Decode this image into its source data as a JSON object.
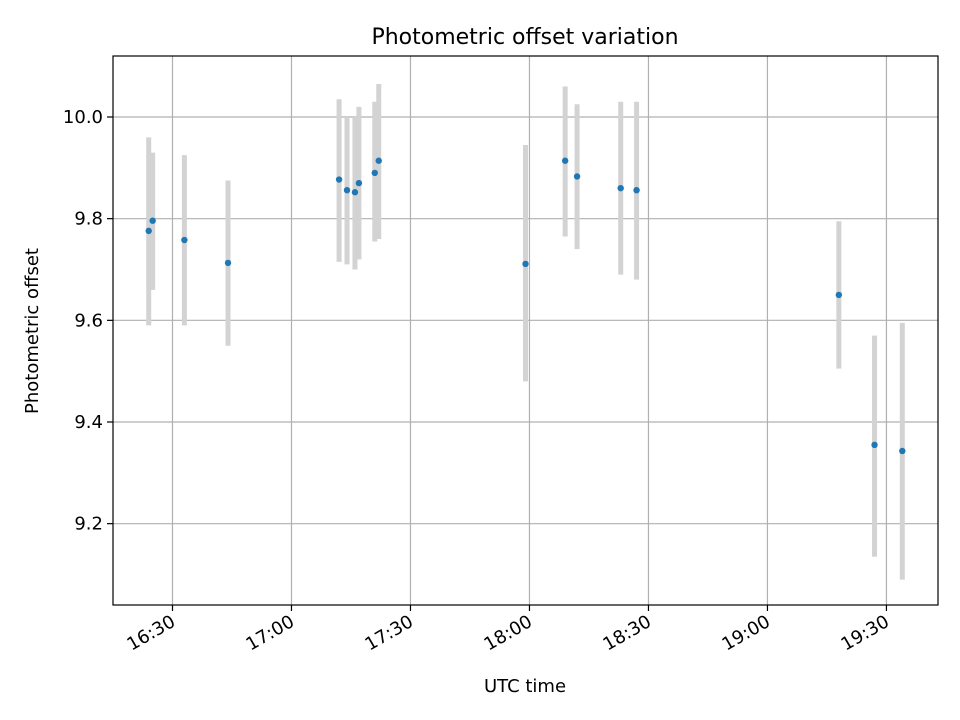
{
  "chart_data": {
    "type": "scatter",
    "title": "Photometric offset variation",
    "xlabel": "UTC time",
    "ylabel": "Photometric offset",
    "xlim": [
      "16:15",
      "19:43"
    ],
    "ylim": [
      9.04,
      10.12
    ],
    "xticks": [
      "16:30",
      "17:00",
      "17:30",
      "18:00",
      "18:30",
      "19:00",
      "19:30"
    ],
    "yticks": [
      9.2,
      9.4,
      9.6,
      9.8,
      10.0
    ],
    "ytick_labels": [
      "9.2",
      "9.4",
      "9.6",
      "9.8",
      "10.0"
    ],
    "grid": true,
    "colors": {
      "points": "#1f77b4",
      "error_bars": "#d3d3d3",
      "grid": "#b0b0b0"
    },
    "points": [
      {
        "x": "16:24",
        "y": 9.776,
        "ylow": 9.59,
        "yhigh": 9.96
      },
      {
        "x": "16:25",
        "y": 9.796,
        "ylow": 9.66,
        "yhigh": 9.93
      },
      {
        "x": "16:33",
        "y": 9.758,
        "ylow": 9.59,
        "yhigh": 9.925
      },
      {
        "x": "16:44",
        "y": 9.713,
        "ylow": 9.55,
        "yhigh": 9.875
      },
      {
        "x": "17:12",
        "y": 9.877,
        "ylow": 9.715,
        "yhigh": 10.035
      },
      {
        "x": "17:14",
        "y": 9.856,
        "ylow": 9.71,
        "yhigh": 10.0
      },
      {
        "x": "17:16",
        "y": 9.852,
        "ylow": 9.7,
        "yhigh": 10.0
      },
      {
        "x": "17:17",
        "y": 9.87,
        "ylow": 9.72,
        "yhigh": 10.02
      },
      {
        "x": "17:21",
        "y": 9.89,
        "ylow": 9.755,
        "yhigh": 10.03
      },
      {
        "x": "17:22",
        "y": 9.914,
        "ylow": 9.76,
        "yhigh": 10.065
      },
      {
        "x": "17:59",
        "y": 9.711,
        "ylow": 9.48,
        "yhigh": 9.945
      },
      {
        "x": "18:09",
        "y": 9.914,
        "ylow": 9.765,
        "yhigh": 10.06
      },
      {
        "x": "18:12",
        "y": 9.883,
        "ylow": 9.74,
        "yhigh": 10.025
      },
      {
        "x": "18:23",
        "y": 9.86,
        "ylow": 9.69,
        "yhigh": 10.03
      },
      {
        "x": "18:27",
        "y": 9.856,
        "ylow": 9.68,
        "yhigh": 10.03
      },
      {
        "x": "19:18",
        "y": 9.65,
        "ylow": 9.505,
        "yhigh": 9.795
      },
      {
        "x": "19:27",
        "y": 9.355,
        "ylow": 9.135,
        "yhigh": 9.57
      },
      {
        "x": "19:34",
        "y": 9.343,
        "ylow": 9.09,
        "yhigh": 9.595
      }
    ]
  }
}
